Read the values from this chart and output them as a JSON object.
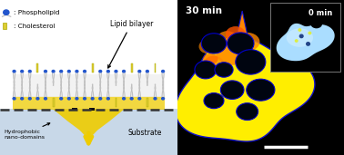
{
  "fig_width": 3.78,
  "fig_height": 1.71,
  "dpi": 100,
  "left_panel": {
    "bg_color": "#ffffff",
    "substrate_color": "#c8d8e8",
    "dashed_line_color": "#333333",
    "yellow_domain_color": "#eecc00",
    "lipid_bilayer_label": "Lipid bilayer",
    "hydrophobic_label": "Hydrophobic\nnano-domains",
    "substrate_label": "Substrate",
    "phospholipid_label": ": Phospholipid",
    "cholesterol_label": ": Cholesterol",
    "head_color": "#2255cc",
    "tail_color": "#c0c0c0",
    "chol_color": "#ddcc33",
    "chol_edge": "#aaaa00",
    "mem_interior": "#e8e8e8"
  },
  "right_panel": {
    "bg_color": "#000000",
    "main_label": "30 min",
    "inset_label": "0 min",
    "label_color": "#ffffff",
    "scalebar_color": "#ffffff",
    "yellow": "#ffee00",
    "orange": "#ff8800",
    "dark_orange": "#ff5500",
    "hole_color": "#000510",
    "hole_edge": "#0000cc",
    "blob_edge": "#1111cc",
    "inset_blue_light": "#aaddff",
    "inset_blue_mid": "#66aadd",
    "inset_blue_dark": "#3388bb"
  }
}
